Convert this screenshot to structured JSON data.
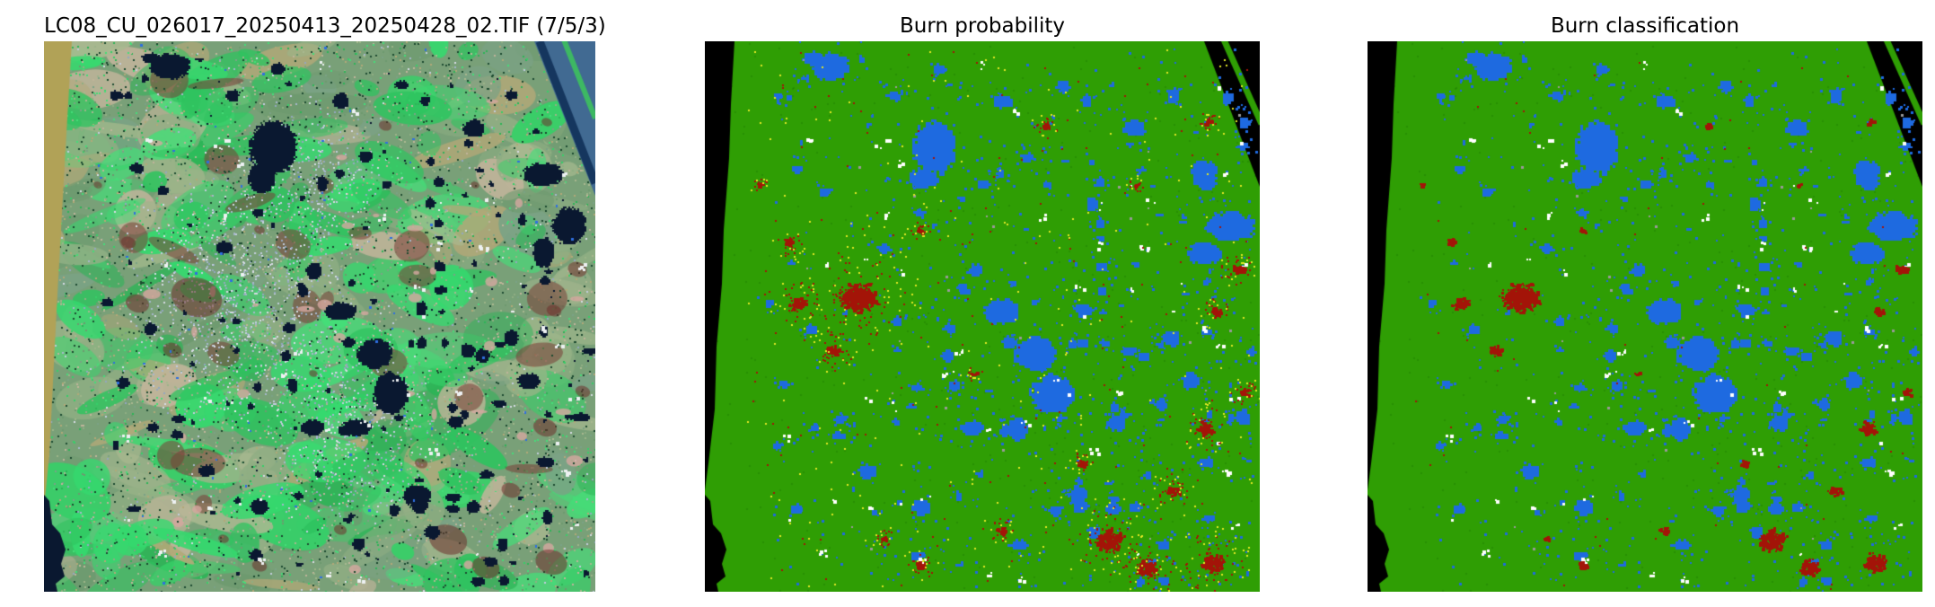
{
  "figure": {
    "background": "#ffffff",
    "panels": [
      {
        "title": "LC08_CU_026017_20250413_20250428_02.TIF (7/5/3)",
        "type": "landsat-false-color-image"
      },
      {
        "title": "Burn probability",
        "type": "classified-raster-map"
      },
      {
        "title": "Burn classification",
        "type": "classified-raster-map"
      }
    ]
  },
  "legend_colors": {
    "unburned_green": "#2f9e04",
    "water_blue": "#1e6ae0",
    "burn_red": "#a31408",
    "low_probability_yellow": "#e1e724",
    "nodata_black": "#000000",
    "cloud_white": "#ffffff",
    "cloud_gray": "#9a9a9a",
    "satellite_edge_tan": "#b1a257",
    "satellite_water_navy": "#0a1830",
    "satellite_bigwater_gray_blue": "#416a92"
  }
}
